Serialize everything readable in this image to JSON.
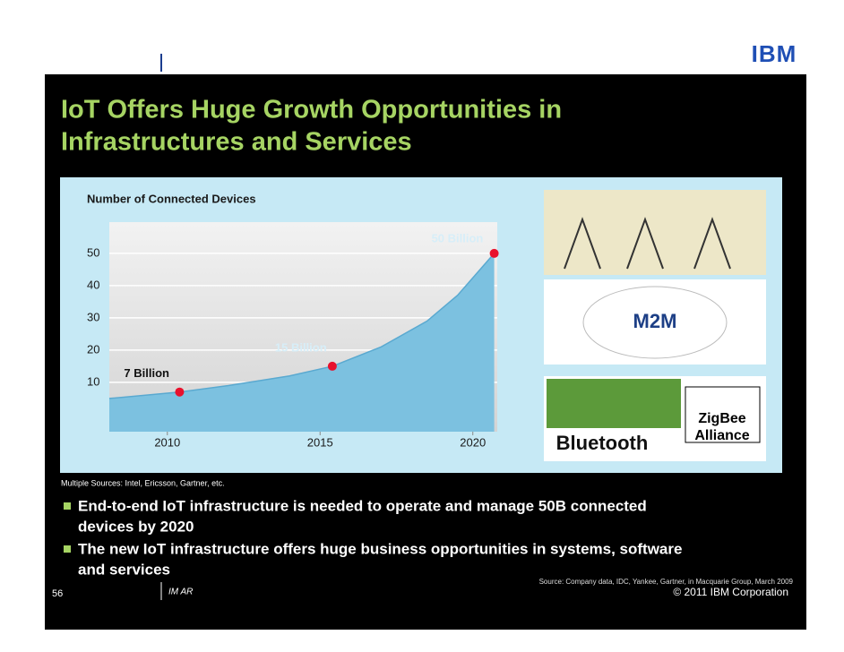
{
  "logo": "IBM",
  "title_lines": [
    "IoT Offers Huge Growth Opportunities in",
    "Infrastructures and Services"
  ],
  "chart_data": {
    "type": "area",
    "title": "Number of Connected Devices",
    "x": [
      2008.1,
      2010.4,
      2012,
      2014,
      2015.4,
      2017,
      2018.5,
      2019.5,
      2020.7
    ],
    "values": [
      5,
      7,
      9,
      12,
      15,
      21,
      29,
      37,
      50
    ],
    "color": "#7cc1e0",
    "points": {
      "x": [
        2010.4,
        2015.4,
        2020.7
      ],
      "values": [
        7,
        15,
        50
      ],
      "value_labels": [
        "7 Billion",
        "15 Billion",
        "50 Billion"
      ],
      "color": "#e8112d"
    },
    "xlim": [
      2008.1,
      2020.8
    ],
    "xticks": [
      2010,
      2015,
      2020
    ],
    "ylim": [
      -5.3,
      59.7
    ],
    "yticks": [
      10,
      20,
      30,
      40,
      50
    ],
    "grid": true
  },
  "chart_source": "Multiple Sources: Intel, Ericsson, Gartner, etc.",
  "images": {
    "m2m": "M2M",
    "bluetooth": "Bluetooth",
    "zigbee_lines": [
      "ZigBee",
      "Alliance"
    ]
  },
  "bullets": [
    [
      "End-to-end IoT infrastructure is needed to operate and manage 50B connected",
      "devices by 2020"
    ],
    [
      "The new IoT infrastructure offers huge business opportunities in systems, software",
      "and services"
    ]
  ],
  "source": "Source: Company data, IDC, Yankee, Gartner, in Macquarie Group, March 2009",
  "footer": {
    "page": "56",
    "label": "IM AR",
    "copyright": "© 2011 IBM Corporation"
  }
}
